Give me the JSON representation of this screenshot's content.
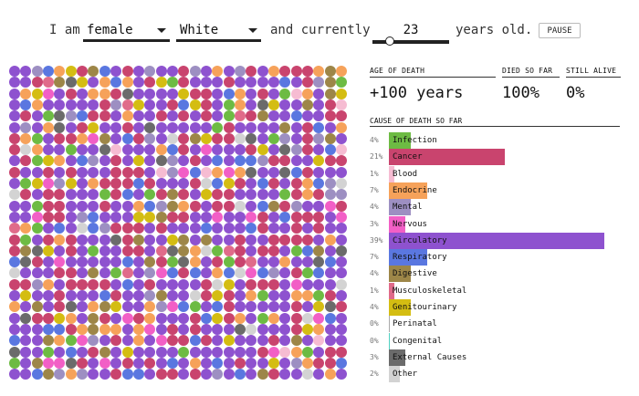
{
  "controls": {
    "prefix": "I am",
    "sex": "female",
    "race": "White",
    "middle": "and currently",
    "age": "23",
    "age_fraction": 0.23,
    "suffix": "years old.",
    "pause_label": "PAUSE"
  },
  "stats": {
    "age_of_death_label": "AGE OF DEATH",
    "age_of_death_value": "+100 years",
    "died_label": "DIED SO FAR",
    "died_value": "100%",
    "alive_label": "STILL ALIVE",
    "alive_value": "0%"
  },
  "cause_header": "CAUSE OF DEATH SO FAR",
  "chart_data": {
    "type": "bar",
    "categories": [
      "Infection",
      "Cancer",
      "Blood",
      "Endocrine",
      "Mental",
      "Nervous",
      "Circulatory",
      "Respiratory",
      "Digestive",
      "Musculoskeletal",
      "Genitourinary",
      "Perinatal",
      "Congenital",
      "External Causes",
      "Other"
    ],
    "percent_labels": [
      "4%",
      "21%",
      "1%",
      "7%",
      "4%",
      "3%",
      "39%",
      "7%",
      "4%",
      "1%",
      "4%",
      "0%",
      "0%",
      "3%",
      "2%"
    ],
    "values": [
      4,
      21,
      1,
      7,
      4,
      3,
      39,
      7,
      4,
      1,
      4,
      0,
      0,
      3,
      2
    ],
    "colors": [
      "#6dbb43",
      "#c9446e",
      "#f6bcd2",
      "#f6a25a",
      "#9d8fc2",
      "#f25fc6",
      "#8e52cf",
      "#5a77e0",
      "#9d8648",
      "#e06b8a",
      "#d4bd12",
      "#aaaaaa",
      "#4fd1c1",
      "#6b6b6b",
      "#d3d3d3"
    ]
  },
  "dot_grid": {
    "columns": 30,
    "rows": 28,
    "counts": [
      34,
      176,
      8,
      59,
      34,
      25,
      327,
      59,
      34,
      8,
      34,
      0,
      0,
      25,
      17
    ]
  }
}
